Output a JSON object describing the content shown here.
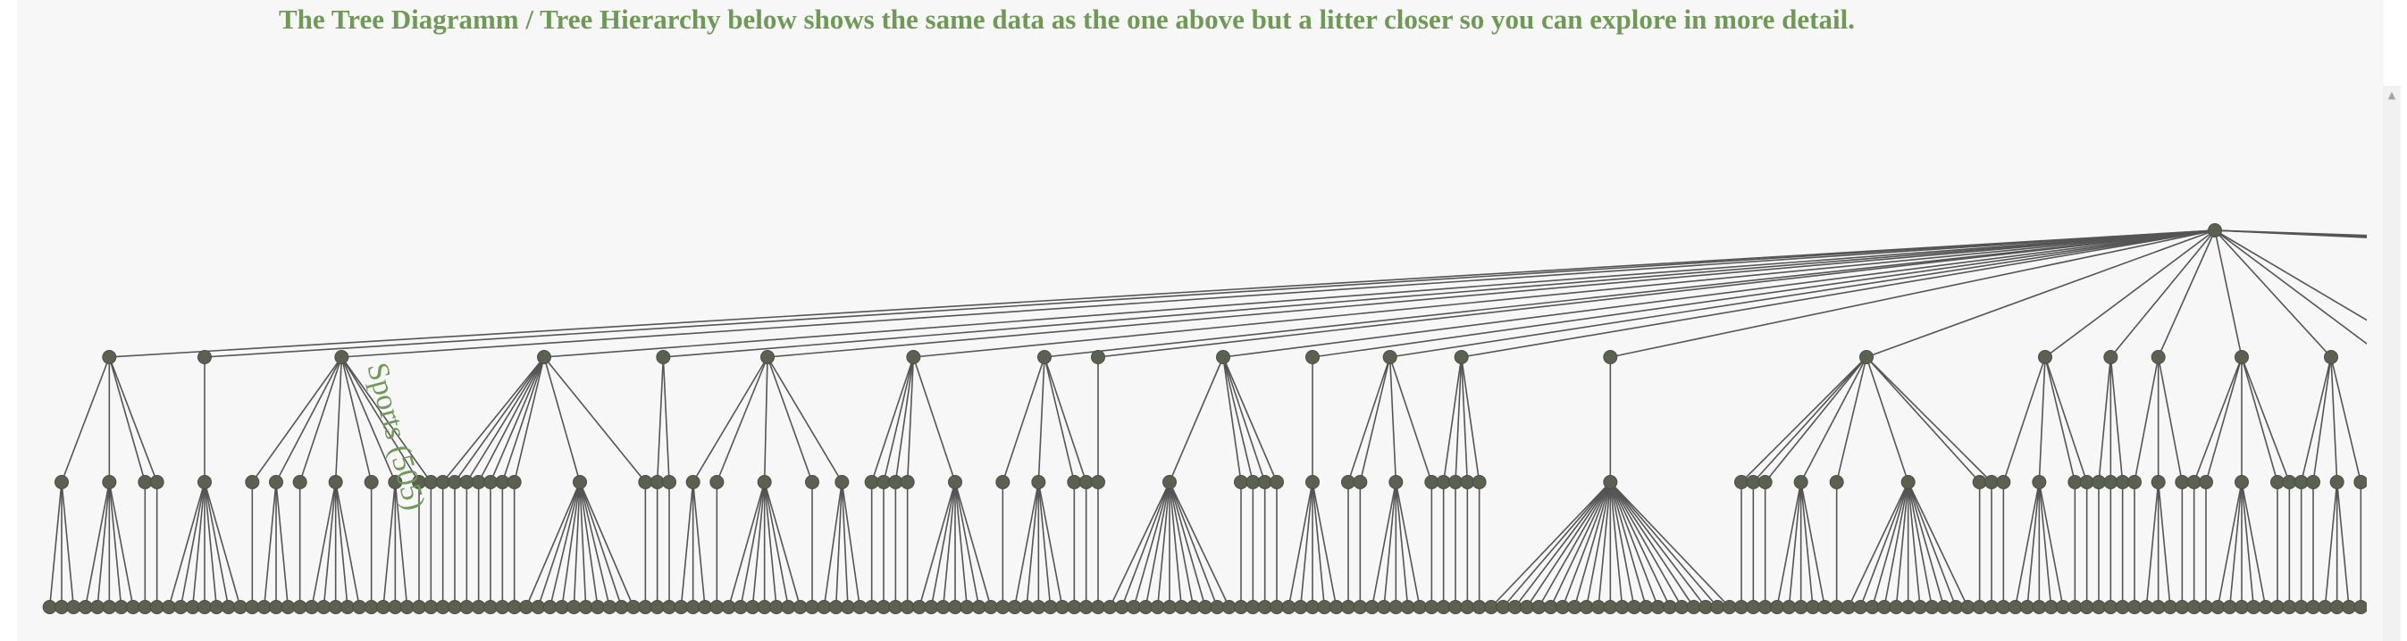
{
  "heading": "The Tree Diagramm / Tree Hierarchy below shows the same data as the one above but a litter closer so you can explore in more detail.",
  "colors": {
    "heading": "#6e9a56",
    "panel_background": "#f7f7f7",
    "node_fill": "#5b6150",
    "link_stroke": "#555555",
    "label": "#6e9a56"
  },
  "tree": {
    "highlight_label": "Sports (505)",
    "root_children_offscreen": true,
    "groups": [
      {
        "sub": [
          3,
          5,
          0,
          0
        ]
      },
      {
        "sub": [
          7
        ]
      },
      {
        "sub": [
          0,
          3,
          0,
          5,
          0,
          3,
          0,
          0
        ]
      },
      {
        "sub": [
          0,
          0,
          0,
          0,
          0,
          0,
          0,
          10,
          0
        ]
      },
      {
        "sub": [
          0,
          0
        ]
      },
      {
        "sub": [
          3,
          0,
          7,
          0,
          4
        ]
      },
      {
        "sub": [
          0,
          0,
          0,
          0,
          7
        ]
      },
      {
        "sub": [
          0,
          5,
          0,
          0
        ]
      },
      {
        "sub": [
          0
        ]
      },
      {
        "sub": [
          11,
          0,
          0,
          0,
          0
        ]
      },
      {
        "sub": [
          5
        ]
      },
      {
        "sub": [
          0,
          0,
          5,
          0
        ]
      },
      {
        "sub": [
          0,
          0,
          0,
          0
        ]
      },
      {
        "sub": [
          21
        ]
      },
      {
        "sub": [
          0,
          0,
          0,
          5,
          0,
          11,
          0,
          0
        ]
      },
      {
        "sub": [
          0,
          5,
          0,
          0
        ]
      },
      {
        "sub": [
          0,
          0,
          0
        ]
      },
      {
        "sub": [
          0,
          3,
          0
        ]
      },
      {
        "sub": [
          0,
          0,
          5,
          0,
          0
        ]
      },
      {
        "sub": [
          0,
          0,
          3,
          0
        ]
      }
    ]
  }
}
